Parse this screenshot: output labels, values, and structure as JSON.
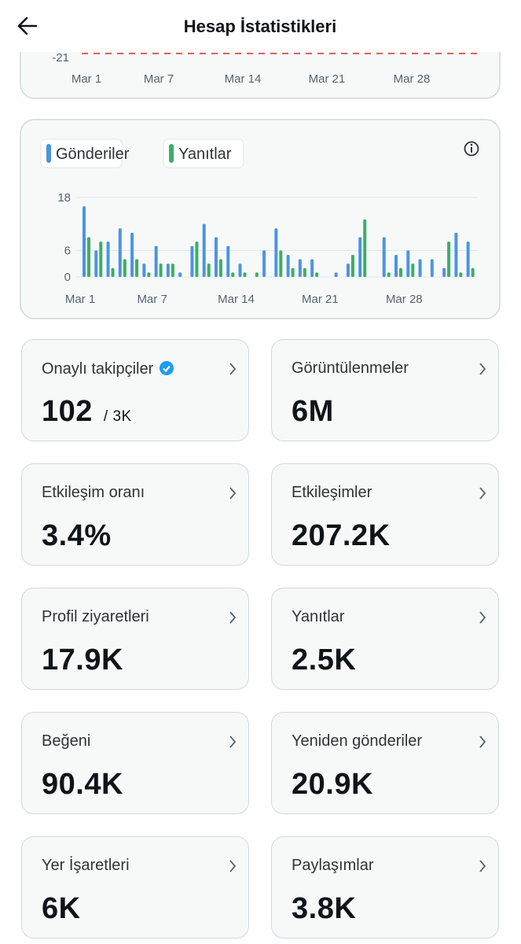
{
  "header": {
    "title": "Hesap İstatistikleri"
  },
  "partial_chart": {
    "ytick_label": "-21",
    "x_labels": [
      "Mar 1",
      "Mar 7",
      "Mar 14",
      "Mar 21",
      "Mar 28"
    ]
  },
  "chart_data": {
    "type": "bar",
    "ylim": [
      0,
      18
    ],
    "yticks": [
      0,
      6,
      18
    ],
    "grid": true,
    "categories": [
      "Mar 1",
      null,
      null,
      null,
      null,
      null,
      "Mar 7",
      null,
      null,
      null,
      null,
      null,
      null,
      "Mar 14",
      null,
      null,
      null,
      null,
      null,
      null,
      "Mar 21",
      null,
      null,
      null,
      null,
      null,
      null,
      "Mar 28",
      null,
      null,
      null,
      null,
      null
    ],
    "series": [
      {
        "name": "Gönderiler",
        "color": "#4b95e0",
        "values": [
          16,
          6,
          8,
          11,
          10,
          3,
          7,
          3,
          1,
          7,
          12,
          9,
          7,
          3,
          0,
          6,
          11,
          5,
          4,
          4,
          0,
          1,
          3,
          9,
          0,
          9,
          5,
          6,
          4,
          4,
          2,
          10,
          8
        ]
      },
      {
        "name": "Yanıtlar",
        "color": "#3dae67",
        "values": [
          9,
          8,
          2,
          4,
          4,
          1,
          3,
          3,
          0,
          8,
          3,
          4,
          1,
          1,
          1,
          0,
          6,
          2,
          2,
          1,
          0,
          0,
          5,
          13,
          0,
          1,
          2,
          3,
          0,
          0,
          8,
          1,
          2
        ]
      }
    ]
  },
  "stats": [
    {
      "label": "Onaylı takipçiler",
      "value": "102",
      "suffix": "/ 3K"
    },
    {
      "label": "Görüntülenmeler",
      "value": "6M"
    },
    {
      "label": "Etkileşim oranı",
      "value": "3.4%"
    },
    {
      "label": "Etkileşimler",
      "value": "207.2K"
    },
    {
      "label": "Profil ziyaretleri",
      "value": "17.9K"
    },
    {
      "label": "Yanıtlar",
      "value": "2.5K"
    },
    {
      "label": "Beğeni",
      "value": "90.4K"
    },
    {
      "label": "Yeniden gönderiler",
      "value": "20.9K"
    },
    {
      "label": "Yer İşaretleri",
      "value": "6K"
    },
    {
      "label": "Paylaşımlar",
      "value": "3.8K"
    }
  ]
}
